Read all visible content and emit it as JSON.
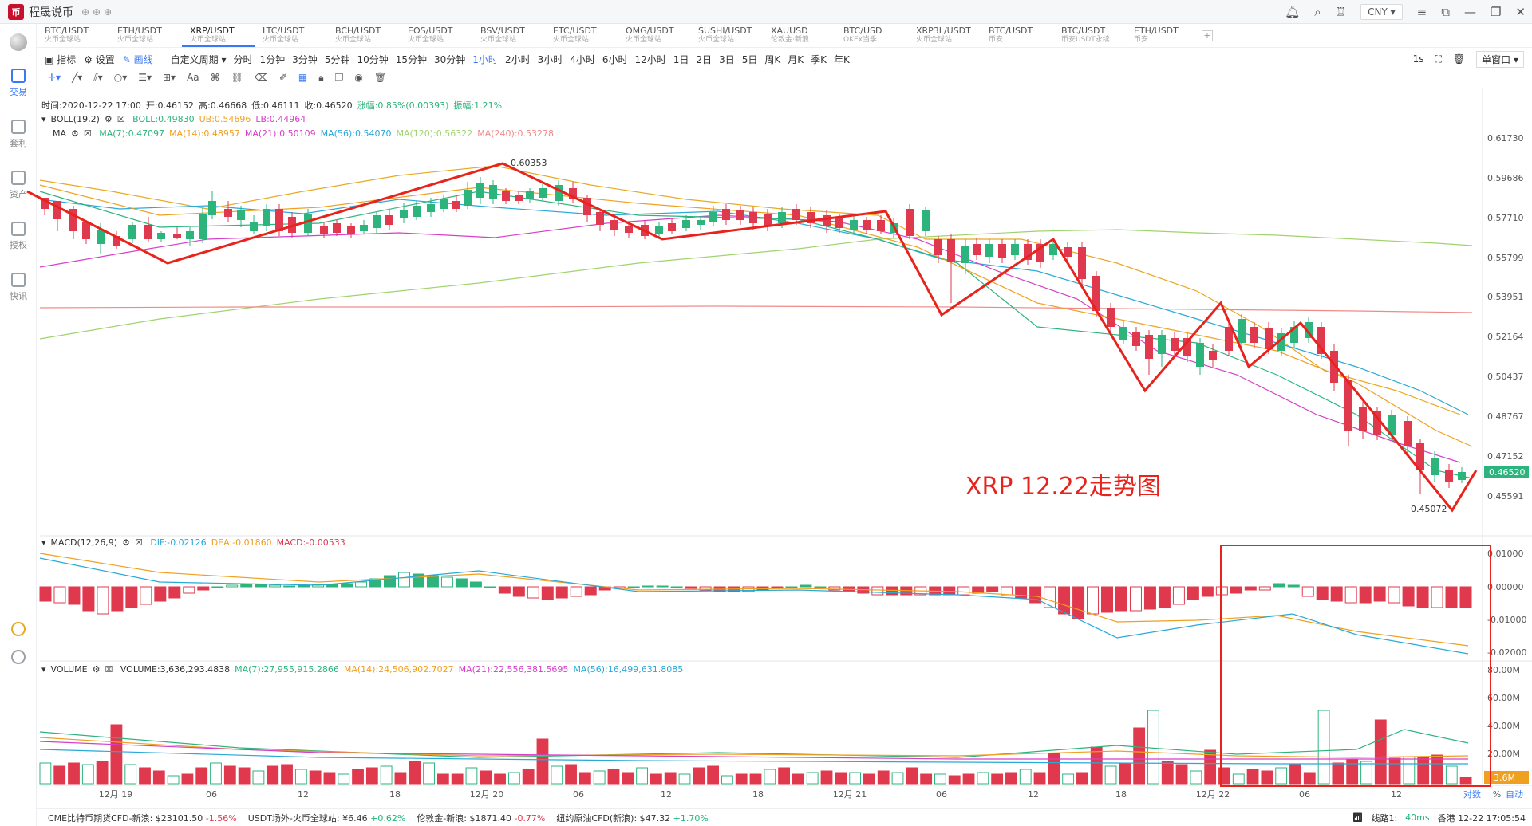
{
  "app": {
    "title": "程晟说币",
    "currency": "CNY"
  },
  "sidebar": [
    {
      "label": "交易",
      "active": true
    },
    {
      "label": "套利",
      "active": false
    },
    {
      "label": "资产",
      "active": false
    },
    {
      "label": "授权",
      "active": false
    },
    {
      "label": "快讯",
      "active": false
    }
  ],
  "pairs": [
    {
      "symbol": "BTC/USDT",
      "exchange": "火币全球站"
    },
    {
      "symbol": "ETH/USDT",
      "exchange": "火币全球站"
    },
    {
      "symbol": "XRP/USDT",
      "exchange": "火币全球站",
      "active": true
    },
    {
      "symbol": "LTC/USDT",
      "exchange": "火币全球站"
    },
    {
      "symbol": "BCH/USDT",
      "exchange": "火币全球站"
    },
    {
      "symbol": "EOS/USDT",
      "exchange": "火币全球站"
    },
    {
      "symbol": "BSV/USDT",
      "exchange": "火币全球站"
    },
    {
      "symbol": "ETC/USDT",
      "exchange": "火币全球站"
    },
    {
      "symbol": "OMG/USDT",
      "exchange": "火币全球站"
    },
    {
      "symbol": "SUSHI/USDT",
      "exchange": "火币全球站"
    },
    {
      "symbol": "XAUUSD",
      "exchange": "伦敦金·新浪"
    },
    {
      "symbol": "BTC/USD",
      "exchange": "OKEx当季"
    },
    {
      "symbol": "XRP3L/USDT",
      "exchange": "火币全球站"
    },
    {
      "symbol": "BTC/USDT",
      "exchange": "币安"
    },
    {
      "symbol": "BTC/USDT",
      "exchange": "币安USDT永续"
    },
    {
      "symbol": "ETH/USDT",
      "exchange": "币安"
    }
  ],
  "toolbar": {
    "indicators": "指标",
    "settings": "设置",
    "draw": "画线",
    "custom_period": "自定义周期"
  },
  "timeframes": [
    "分时",
    "1分钟",
    "3分钟",
    "5分钟",
    "10分钟",
    "15分钟",
    "30分钟",
    "1小时",
    "2小时",
    "3小时",
    "4小时",
    "6小时",
    "12小时",
    "1日",
    "2日",
    "3日",
    "5日",
    "周K",
    "月K",
    "季K",
    "年K"
  ],
  "active_timeframe": "1小时",
  "right_tools": {
    "interval": "1s",
    "window_mode": "单窗口"
  },
  "ohlc": {
    "time": "时间:2020-12-22 17:00",
    "open": "开:0.46152",
    "high": "高:0.46668",
    "low": "低:0.46111",
    "close": "收:0.46520",
    "change": "涨幅:0.85%(0.00393)",
    "amplitude": "振幅:1.21%"
  },
  "boll": {
    "name": "BOLL(19,2)",
    "mid": "BOLL:0.49830",
    "ub": "UB:0.54696",
    "lb": "LB:0.44964"
  },
  "ma": {
    "name": "MA",
    "ma7": "MA(7):0.47097",
    "ma14": "MA(14):0.48957",
    "ma21": "MA(21):0.50109",
    "ma56": "MA(56):0.54070",
    "ma120": "MA(120):0.56322",
    "ma240": "MA(240):0.53278"
  },
  "macd": {
    "name": "MACD(12,26,9)",
    "dif": "DIF:-0.02126",
    "dea": "DEA:-0.01860",
    "macd": "MACD:-0.00533"
  },
  "volume": {
    "name": "VOLUME",
    "vol": "VOLUME:3,636,293.4838",
    "ma7": "MA(7):27,955,915.2866",
    "ma14": "MA(14):24,506,902.7027",
    "ma21": "MA(21):22,556,381.5695",
    "ma56": "MA(56):16,499,631.8085"
  },
  "price_axis": [
    "0.61730",
    "0.59686",
    "0.57710",
    "0.55799",
    "0.53951",
    "0.52164",
    "0.50437",
    "0.48767",
    "0.47152",
    "0.45591"
  ],
  "current_price": "0.46520",
  "macd_axis": [
    "0.01000",
    "0.00000",
    "-0.01000",
    "-0.02000"
  ],
  "volume_axis": [
    "80.00M",
    "60.00M",
    "40.00M",
    "20.00M"
  ],
  "current_volume": "3.6M",
  "time_axis": [
    "12月 19",
    "06",
    "12",
    "18",
    "12月 20",
    "06",
    "12",
    "18",
    "12月 21",
    "06",
    "12",
    "18",
    "12月 22",
    "06",
    "12"
  ],
  "annotations": {
    "high": "0.60353",
    "low": "0.45072",
    "caption": "XRP 12.22走势图"
  },
  "axis_modes": [
    "对数",
    "%",
    "自动"
  ],
  "ticker": [
    {
      "name": "CME比特币期货CFD-新浪:",
      "price": "$23101.50",
      "change": "-1.56%",
      "dir": "neg"
    },
    {
      "name": "USDT场外-火币全球站:",
      "price": "¥6.46",
      "change": "+0.62%",
      "dir": "pos"
    },
    {
      "name": "伦敦金-新浪:",
      "price": "$1871.40",
      "change": "-0.77%",
      "dir": "neg"
    },
    {
      "name": "纽约原油CFD(新浪):",
      "price": "$47.32",
      "change": "+1.70%",
      "dir": "pos"
    }
  ],
  "status": {
    "line": "线路1:",
    "latency": "40ms",
    "clock": "香港 12-22 17:05:54"
  },
  "colors": {
    "up": "#2db37c",
    "down": "#e0394d",
    "accent": "#3a79f6",
    "annot": "#e8231c"
  }
}
